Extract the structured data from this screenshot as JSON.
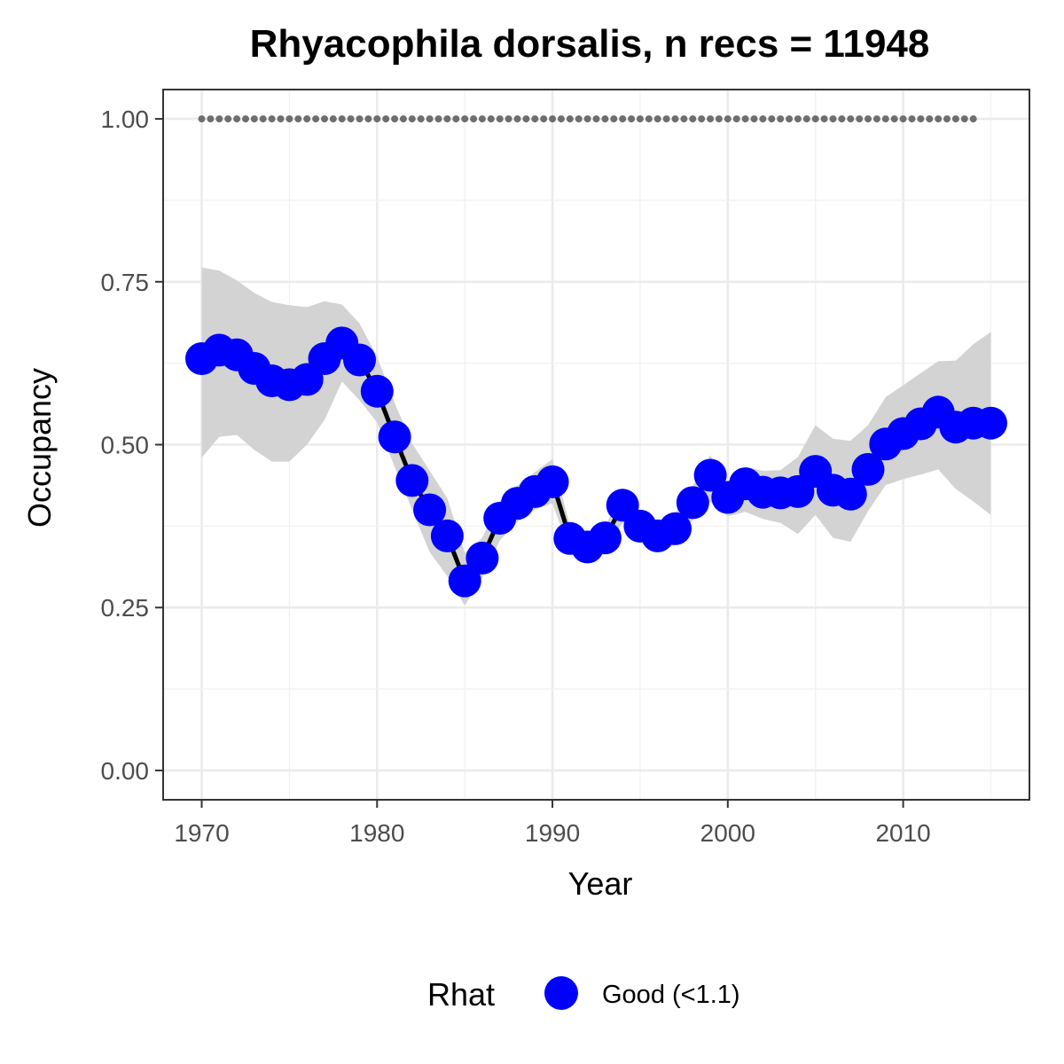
{
  "chart_data": {
    "type": "line",
    "title": "Rhyacophila dorsalis, n recs = 11948",
    "xlabel": "Year",
    "ylabel": "Occupancy",
    "xlim": [
      1967.8,
      2017.2
    ],
    "ylim": [
      -0.045,
      1.045
    ],
    "x_ticks": [
      1970,
      1980,
      1990,
      2000,
      2010
    ],
    "x_tick_labels": [
      "1970",
      "1980",
      "1990",
      "2000",
      "2010"
    ],
    "y_ticks": [
      0,
      0.25,
      0.5,
      0.75,
      1
    ],
    "y_tick_labels": [
      "0.00",
      "0.25",
      "0.50",
      "0.75",
      "1.00"
    ],
    "grid": true,
    "legend": {
      "title": "Rhat",
      "position": "bottom",
      "entries": [
        {
          "label": "Good (<1.1)",
          "color": "#0000ff"
        }
      ]
    },
    "colors": {
      "points": "#0000ff",
      "line": "#000000",
      "ribbon": "#d3d3d3",
      "dotted_reference": "#6e6e6e"
    },
    "dotted_reference": {
      "x_start": 1970,
      "x_end": 2014,
      "y": 1.0
    },
    "x": [
      1970,
      1971,
      1972,
      1973,
      1974,
      1975,
      1976,
      1977,
      1978,
      1979,
      1980,
      1981,
      1982,
      1983,
      1984,
      1985,
      1986,
      1987,
      1988,
      1989,
      1990,
      1991,
      1992,
      1993,
      1994,
      1995,
      1996,
      1997,
      1998,
      1999,
      2000,
      2001,
      2002,
      2003,
      2004,
      2005,
      2006,
      2007,
      2008,
      2009,
      2010,
      2011,
      2012,
      2013,
      2014,
      2015
    ],
    "series": [
      {
        "values": [
          0.632,
          0.645,
          0.638,
          0.617,
          0.598,
          0.592,
          0.6,
          0.632,
          0.656,
          0.63,
          0.582,
          0.512,
          0.445,
          0.4,
          0.36,
          0.291,
          0.326,
          0.387,
          0.41,
          0.428,
          0.443,
          0.356,
          0.343,
          0.357,
          0.407,
          0.375,
          0.36,
          0.371,
          0.411,
          0.453,
          0.419,
          0.44,
          0.427,
          0.426,
          0.428,
          0.459,
          0.43,
          0.424,
          0.462,
          0.501,
          0.517,
          0.532,
          0.55,
          0.527,
          0.533,
          0.533
        ],
        "lower": [
          0.48,
          0.512,
          0.515,
          0.492,
          0.474,
          0.474,
          0.5,
          0.538,
          0.597,
          0.568,
          0.534,
          0.466,
          0.4,
          0.335,
          0.298,
          0.253,
          0.296,
          0.353,
          0.381,
          0.4,
          0.41,
          0.335,
          0.32,
          0.34,
          0.38,
          0.352,
          0.335,
          0.346,
          0.384,
          0.412,
          0.39,
          0.397,
          0.386,
          0.38,
          0.363,
          0.392,
          0.357,
          0.351,
          0.398,
          0.438,
          0.447,
          0.454,
          0.462,
          0.432,
          0.413,
          0.392
        ],
        "upper": [
          0.772,
          0.767,
          0.752,
          0.733,
          0.719,
          0.714,
          0.711,
          0.72,
          0.715,
          0.686,
          0.635,
          0.564,
          0.502,
          0.46,
          0.418,
          0.334,
          0.357,
          0.414,
          0.438,
          0.458,
          0.478,
          0.376,
          0.364,
          0.374,
          0.43,
          0.395,
          0.38,
          0.395,
          0.436,
          0.484,
          0.44,
          0.466,
          0.46,
          0.461,
          0.481,
          0.53,
          0.509,
          0.506,
          0.53,
          0.573,
          0.591,
          0.61,
          0.628,
          0.629,
          0.654,
          0.673
        ]
      }
    ]
  }
}
